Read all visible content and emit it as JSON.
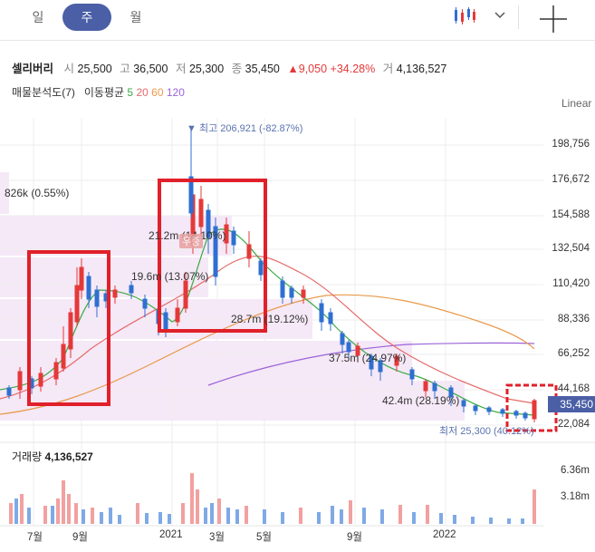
{
  "periods": [
    "일",
    "주",
    "월"
  ],
  "info": {
    "name": "셀리버리",
    "open_k": "시",
    "open": "25,500",
    "high_k": "고",
    "high": "36,500",
    "low_k": "저",
    "low": "25,300",
    "close_k": "종",
    "close": "35,450",
    "change": "▲9,050",
    "change_pct": "+34.28%",
    "vol_k": "거",
    "volume": "4,136,527"
  },
  "indicators": {
    "label": "매물분석도(7)",
    "ma_label": "이동평균",
    "ma5": "5",
    "ma20": "20",
    "ma60": "60",
    "ma120": "120"
  },
  "scale": "Linear",
  "price_axis": [
    "198,756",
    "176,672",
    "154,588",
    "132,504",
    "110,420",
    "88,336",
    "66,252",
    "44,168",
    "22,084"
  ],
  "current_price": "35,450",
  "annotations": {
    "high": "▼ 최고 206,921 (-82.87%)",
    "low": "최저 25,300 (40.12%)",
    "dist1": "826k (0.55%)",
    "dist2": "21.2m (14.10%)",
    "dist3": "19.6m (13.07%)",
    "dist4": "28.7m (19.12%)",
    "dist5": "37.5m (24.97%)",
    "dist6": "42.4m (28.19%)",
    "watermark": "우증"
  },
  "volume": {
    "label": "거래량",
    "value": "4,136,527",
    "axis": [
      "6.36m",
      "3.18m"
    ]
  },
  "x_axis": [
    "7월",
    "9월",
    "2021",
    "3월",
    "5월",
    "9월",
    "2022"
  ],
  "colors": {
    "up": "#e53939",
    "down": "#2f6fd1",
    "ma5": "#3aaa44",
    "ma20": "#e66b6b",
    "ma60": "#e89a4a",
    "ma120": "#9a63d8",
    "accent": "#4a5fa6",
    "box": "#e0202a"
  }
}
